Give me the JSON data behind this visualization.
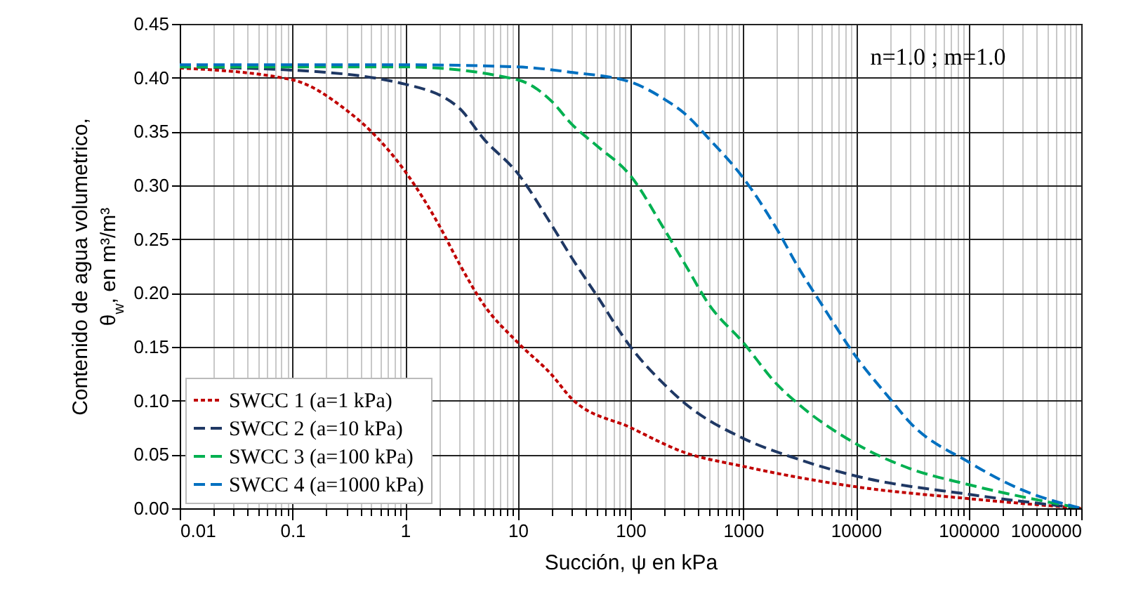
{
  "chart_data": {
    "type": "line",
    "xlabel": "Succión, ψ en kPa",
    "ylabel": "Contenido de agua volumetrico,\nθ$_{w}$, en m³/m³",
    "annotations": [
      "n=1.0 ; m=1.0"
    ],
    "log": "x",
    "grid": true,
    "legend": "bottom left",
    "xlim": [
      0.01,
      1000000
    ],
    "xticks": [
      0.01,
      0.1,
      1,
      10,
      100,
      1000,
      10000,
      100000,
      1000000
    ],
    "ylim": [
      0,
      0.45
    ],
    "yticks": [
      {
        "value": 0,
        "label": "0.00"
      },
      {
        "value": 0.05,
        "label": "0.05"
      },
      {
        "value": 0.1,
        "label": "0.10"
      },
      {
        "value": 0.15,
        "label": "0.15"
      },
      {
        "value": 0.2,
        "label": "0.20"
      },
      {
        "value": 0.25,
        "label": "0.25"
      },
      {
        "value": 0.3,
        "label": "0.30"
      },
      {
        "value": 0.35,
        "label": "0.35"
      },
      {
        "value": 0.4,
        "label": "0.40"
      },
      {
        "value": 0.45,
        "label": "0.45"
      }
    ],
    "series": [
      {
        "name": "SWCC 1 (a=1 kPa)",
        "color": "#c00000",
        "line_style": "dotted",
        "x": [
          0.01,
          0.1,
          0.3,
          0.5,
          1,
          2,
          3,
          5,
          10,
          20,
          30,
          100,
          300,
          1000,
          10000,
          100000,
          1000000
        ],
        "values": [
          0.409,
          0.398,
          0.37,
          0.35,
          0.313,
          0.263,
          0.228,
          0.189,
          0.154,
          0.124,
          0.102,
          0.075,
          0.052,
          0.039,
          0.02,
          0.009,
          0
        ]
      },
      {
        "name": "SWCC 2 (a=10 kPa)",
        "color": "#1f3864",
        "line_style": "dashed",
        "x": [
          0.01,
          0.1,
          1,
          3,
          5,
          10,
          20,
          30,
          50,
          100,
          200,
          300,
          1000,
          3000,
          10000,
          100000,
          1000000
        ],
        "values": [
          0.41,
          0.407,
          0.394,
          0.372,
          0.343,
          0.311,
          0.263,
          0.233,
          0.198,
          0.15,
          0.115,
          0.098,
          0.065,
          0.046,
          0.03,
          0.013,
          0
        ]
      },
      {
        "name": "SWCC 3 (a=100 kPa)",
        "color": "#00b050",
        "line_style": "dashed",
        "x": [
          0.01,
          1,
          10,
          20,
          30,
          50,
          100,
          200,
          300,
          500,
          1000,
          2000,
          3000,
          10000,
          30000,
          100000,
          1000000
        ],
        "values": [
          0.41,
          0.41,
          0.398,
          0.378,
          0.357,
          0.337,
          0.309,
          0.259,
          0.228,
          0.189,
          0.154,
          0.115,
          0.098,
          0.06,
          0.037,
          0.022,
          0
        ]
      },
      {
        "name": "SWCC 4 (a=1000 kPa)",
        "color": "#0070c0",
        "line_style": "dashed",
        "x": [
          0.01,
          1,
          10,
          30,
          100,
          200,
          300,
          500,
          1000,
          2000,
          3000,
          5000,
          10000,
          20000,
          30000,
          100000,
          300000,
          1000000
        ],
        "values": [
          0.412,
          0.412,
          0.41,
          0.405,
          0.396,
          0.38,
          0.367,
          0.343,
          0.307,
          0.259,
          0.226,
          0.189,
          0.141,
          0.102,
          0.08,
          0.043,
          0.017,
          0
        ]
      }
    ]
  }
}
